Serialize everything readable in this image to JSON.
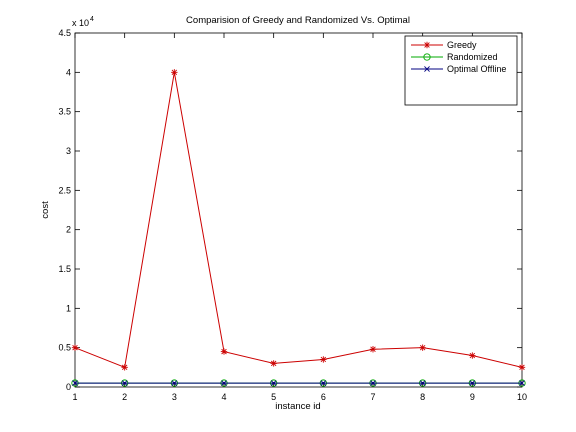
{
  "chart_data": {
    "type": "line",
    "title": "Comparision of Greedy and Randomized Vs. Optimal",
    "xlabel": "instance id",
    "ylabel": "cost",
    "y_exponent_label": "x 10",
    "y_exponent_power": "4",
    "x": [
      1,
      2,
      3,
      4,
      5,
      6,
      7,
      8,
      9,
      10
    ],
    "xlim": [
      1,
      10
    ],
    "ylim": [
      0,
      4.5
    ],
    "x_ticks": [
      "1",
      "2",
      "3",
      "4",
      "5",
      "6",
      "7",
      "8",
      "9",
      "10"
    ],
    "y_ticks": [
      "0",
      "0.5",
      "1",
      "1.5",
      "2",
      "2.5",
      "3",
      "3.5",
      "4",
      "4.5"
    ],
    "grid": false,
    "legend_position": "top-right",
    "series": [
      {
        "name": "Greedy",
        "color": "#cc0000",
        "marker": "star",
        "values": [
          0.5,
          0.25,
          4.0,
          0.45,
          0.3,
          0.35,
          0.48,
          0.5,
          0.4,
          0.25
        ]
      },
      {
        "name": "Randomized",
        "color": "#00aa00",
        "marker": "circle",
        "values": [
          0.05,
          0.05,
          0.05,
          0.05,
          0.05,
          0.05,
          0.05,
          0.05,
          0.05,
          0.05
        ]
      },
      {
        "name": "Optimal Offline",
        "color": "#000080",
        "marker": "x",
        "values": [
          0.05,
          0.05,
          0.05,
          0.05,
          0.05,
          0.05,
          0.05,
          0.05,
          0.05,
          0.05
        ]
      }
    ]
  }
}
